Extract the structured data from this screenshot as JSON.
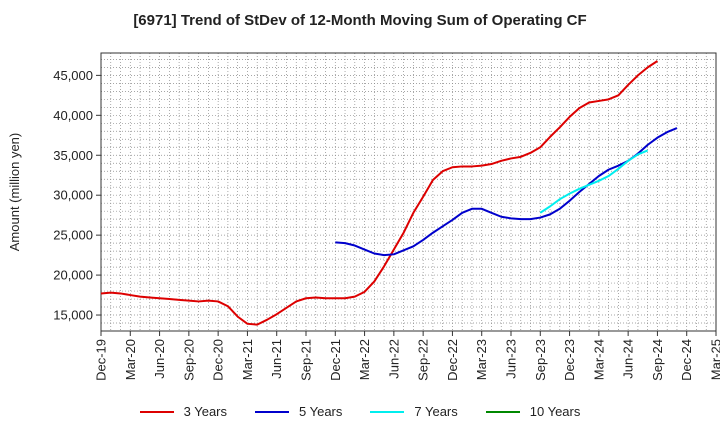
{
  "chart_data": {
    "type": "line",
    "title": "[6971]  Trend of StDev of 12-Month Moving Sum of Operating CF",
    "xlabel": "",
    "ylabel": "Amount (million yen)",
    "ylim": [
      13000,
      47800
    ],
    "yticks": [
      15000,
      20000,
      25000,
      30000,
      35000,
      40000,
      45000
    ],
    "ytick_labels": [
      "15,000",
      "20,000",
      "25,000",
      "30,000",
      "35,000",
      "40,000",
      "45,000"
    ],
    "xtick_labels": [
      "Dec-19",
      "Mar-20",
      "Jun-20",
      "Sep-20",
      "Dec-20",
      "Mar-21",
      "Jun-21",
      "Sep-21",
      "Dec-21",
      "Mar-22",
      "Jun-22",
      "Sep-22",
      "Dec-22",
      "Mar-23",
      "Jun-23",
      "Sep-23",
      "Dec-23",
      "Mar-24",
      "Jun-24",
      "Sep-24",
      "Dec-24",
      "Mar-25"
    ],
    "grid": true,
    "legend_position": "bottom",
    "series": [
      {
        "name": "3 Years",
        "color": "#dd0000",
        "start_index": 0,
        "values": [
          17700,
          17800,
          17700,
          17500,
          17300,
          17200,
          17100,
          17000,
          16900,
          16800,
          16700,
          16800,
          16700,
          16100,
          14800,
          13900,
          13800,
          14400,
          15100,
          15900,
          16700,
          17100,
          17200,
          17100,
          17100,
          17100,
          17300,
          17900,
          19200,
          21100,
          23200,
          25300,
          27800,
          29800,
          31900,
          33000,
          33500,
          33600,
          33600,
          33700,
          33900,
          34300,
          34600,
          34800,
          35300,
          36000,
          37300,
          38500,
          39800,
          40900,
          41600,
          41800,
          42000,
          42500,
          43800,
          45000,
          46000,
          46800
        ]
      },
      {
        "name": "5 Years",
        "color": "#0000cc",
        "start_index": 24,
        "values": [
          24100,
          24000,
          23700,
          23200,
          22700,
          22500,
          22600,
          23100,
          23600,
          24400,
          25300,
          26100,
          26900,
          27800,
          28300,
          28300,
          27800,
          27300,
          27100,
          27000,
          27000,
          27200,
          27600,
          28300,
          29300,
          30400,
          31400,
          32400,
          33200,
          33700,
          34300,
          35200,
          36300,
          37200,
          37900,
          38400
        ]
      },
      {
        "name": "7 Years",
        "color": "#00eeee",
        "start_index": 45,
        "values": [
          27800,
          28600,
          29500,
          30200,
          30800,
          31300,
          31800,
          32400,
          33300,
          34300,
          35100,
          35600
        ]
      },
      {
        "name": "10 Years",
        "color": "#008800",
        "start_index": 0,
        "values": []
      }
    ]
  }
}
